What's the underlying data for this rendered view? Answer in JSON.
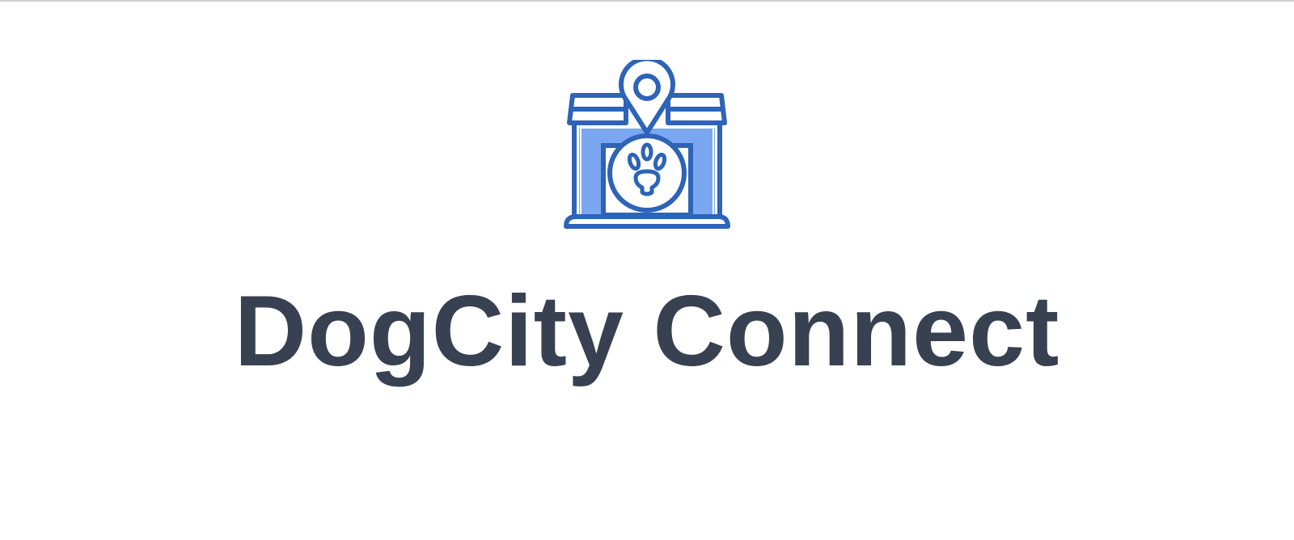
{
  "brand": {
    "title": "DogCity Connect",
    "logo_icon": "dog-house-location-paw-icon"
  },
  "colors": {
    "logo_stroke": "#2D63B8",
    "logo_fill": "#7AA7F0",
    "title_text": "#374151",
    "background": "#FFFFFF"
  }
}
